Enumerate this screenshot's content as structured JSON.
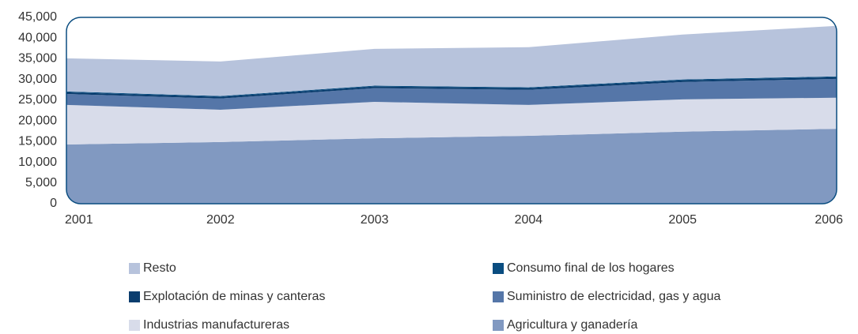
{
  "chart_data": {
    "type": "stacked_area",
    "categories": [
      "2001",
      "2002",
      "2003",
      "2004",
      "2005",
      "2006"
    ],
    "series": [
      {
        "name": "Agricultura y ganadería",
        "color": "#8199c1",
        "values": [
          14300,
          14900,
          15800,
          16400,
          17400,
          18100
        ]
      },
      {
        "name": "Industrias manufactureras",
        "color": "#d8dcea",
        "values": [
          9550,
          7800,
          8800,
          7450,
          7800,
          7500
        ]
      },
      {
        "name": "Suministro de electricidad, gas y agua",
        "color": "#5576a8",
        "values": [
          2650,
          2700,
          3300,
          3650,
          4200,
          4550
        ]
      },
      {
        "name": "Explotación de minas y canteras",
        "color": "#0a3d6e",
        "values": [
          400,
          400,
          400,
          400,
          400,
          400
        ]
      },
      {
        "name": "Consumo final de los hogares",
        "color": "#0a4d80",
        "values": [
          200,
          200,
          200,
          200,
          200,
          200
        ]
      },
      {
        "name": "Resto",
        "color": "#b7c3dc",
        "values": [
          8000,
          8350,
          8900,
          9700,
          10850,
          12200
        ]
      }
    ],
    "ylim": [
      0,
      45000
    ],
    "yticks": [
      0,
      {
        "value": 5000,
        "label": "5,000"
      },
      {
        "value": 10000,
        "label": "10,000"
      },
      {
        "value": 15000,
        "label": "15,000"
      },
      {
        "value": 20000,
        "label": "20,000"
      },
      {
        "value": 25000,
        "label": "25,000"
      },
      {
        "value": 30000,
        "label": "30,000"
      },
      {
        "value": 35000,
        "label": "35,000"
      },
      {
        "value": 40000,
        "label": "40,000"
      },
      {
        "value": 45000,
        "label": "45,000"
      }
    ]
  }
}
